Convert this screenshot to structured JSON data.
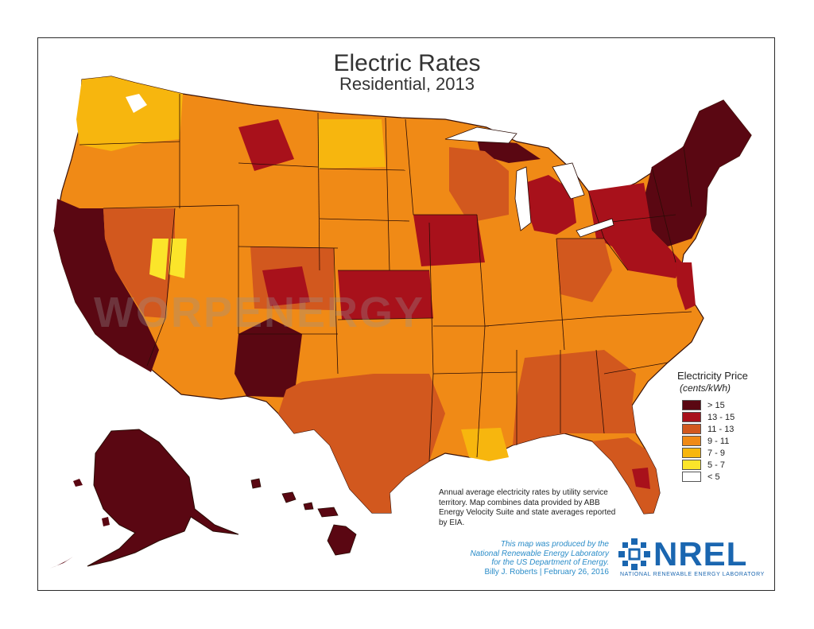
{
  "title": "Electric Rates",
  "subtitle": "Residential, 2013",
  "legend": {
    "title": "Electricity Price",
    "units": "(cents/kWh)",
    "items": [
      {
        "label": "> 15",
        "color": "#5a0712"
      },
      {
        "label": "13 - 15",
        "color": "#a8111b"
      },
      {
        "label": "11 - 13",
        "color": "#d2581e"
      },
      {
        "label": "9 - 11",
        "color": "#f08a16"
      },
      {
        "label": "7 - 9",
        "color": "#f7b60e"
      },
      {
        "label": "5 - 7",
        "color": "#fbe52a"
      },
      {
        "label": "< 5",
        "color": "#ffffff"
      }
    ]
  },
  "note": "Annual average electricity rates by utility service territory. Map combines data provided by ABB Energy Velocity Suite and state averages reported by EIA.",
  "credit": {
    "line1": "This map was produced by the",
    "line2": "National Renewable Energy Laboratory",
    "line3": "for the US Department of Energy.",
    "line4": "Billy J. Roberts  |  February 26, 2016"
  },
  "logo": {
    "name": "NREL",
    "subtitle": "NATIONAL RENEWABLE ENERGY LABORATORY"
  },
  "watermark": "WORPENERGY"
}
